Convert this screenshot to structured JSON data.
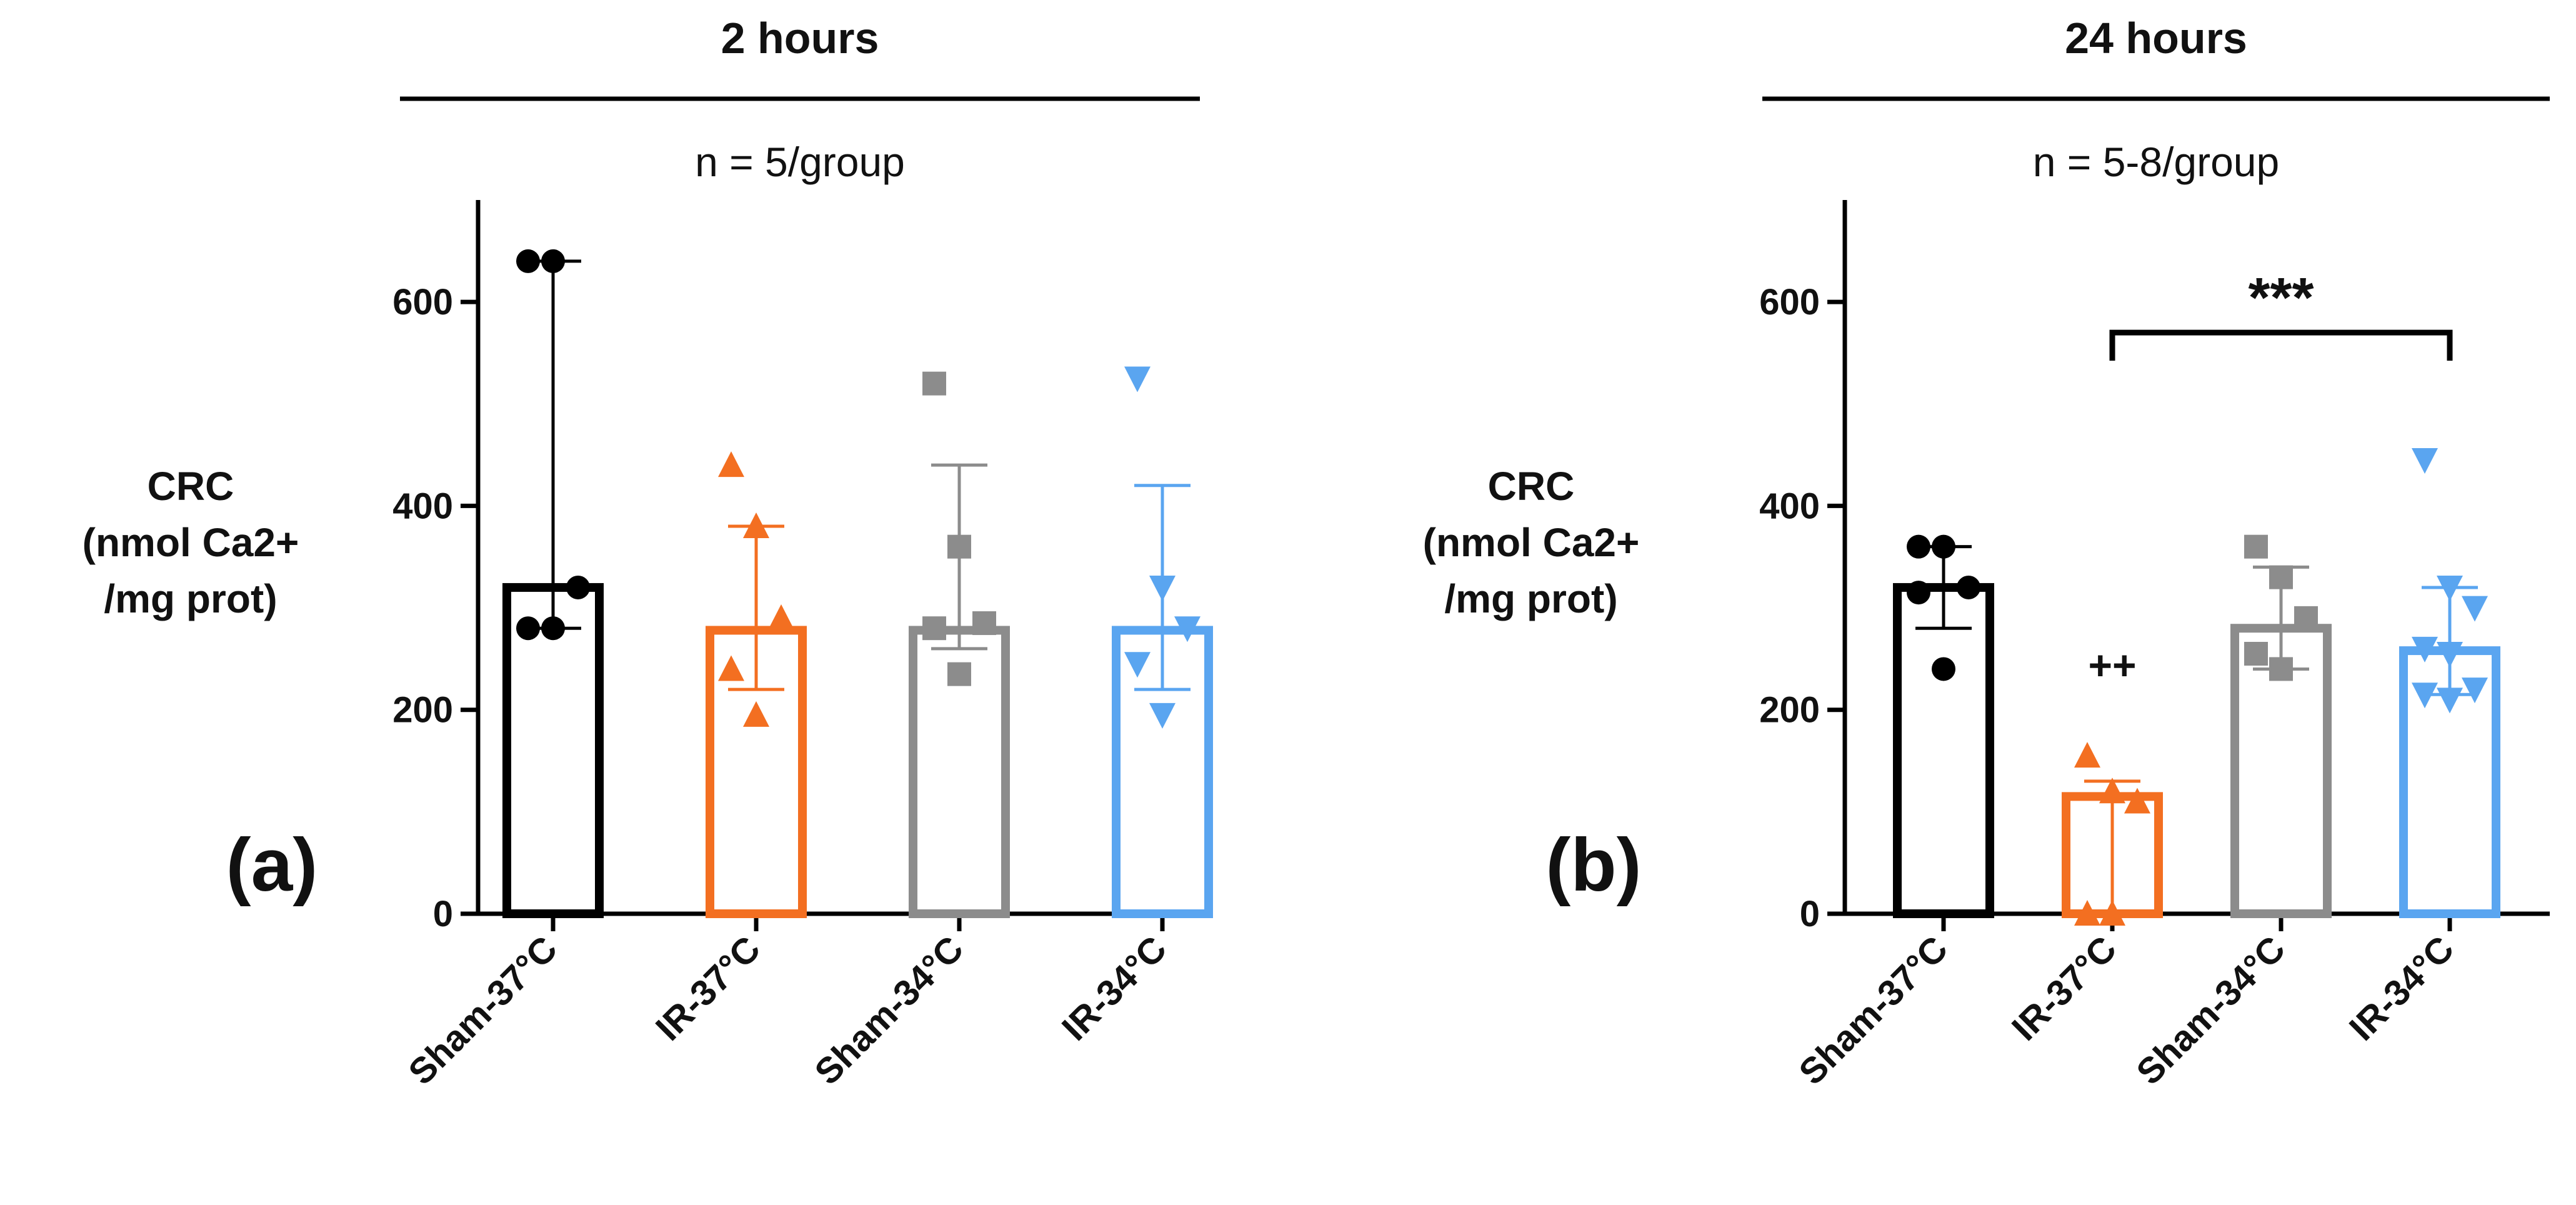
{
  "chart_data": [
    {
      "type": "bar",
      "panel_label": "(a)",
      "title": "2 hours",
      "subtitle": "n = 5/group",
      "ylabel": [
        "CRC",
        "(nmol Ca2+",
        "/mg prot)"
      ],
      "ylim": [
        0,
        700
      ],
      "yticks": [
        0,
        200,
        400,
        600
      ],
      "categories": [
        "Sham-37°C",
        "IR-37°C",
        "Sham-34°C",
        "IR-34°C"
      ],
      "means": [
        320,
        278,
        278,
        278
      ],
      "error_upper": [
        640,
        380,
        440,
        420
      ],
      "error_lower": [
        280,
        220,
        260,
        220
      ],
      "points": [
        [
          640,
          640,
          320,
          280,
          280
        ],
        [
          440,
          380,
          290,
          240,
          195
        ],
        [
          520,
          360,
          285,
          280,
          235
        ],
        [
          525,
          320,
          280,
          245,
          195
        ]
      ],
      "colors": [
        "#000000",
        "#f36f21",
        "#8c8c8c",
        "#5aa5f0"
      ],
      "markers": [
        "circle",
        "triangle-up",
        "square",
        "triangle-down"
      ],
      "annotations": []
    },
    {
      "type": "bar",
      "panel_label": "(b)",
      "title": "24 hours",
      "subtitle": "n = 5-8/group",
      "ylabel": [
        "CRC",
        "(nmol Ca2+",
        "/mg prot)"
      ],
      "ylim": [
        0,
        700
      ],
      "yticks": [
        0,
        200,
        400,
        600
      ],
      "categories": [
        "Sham-37°C",
        "IR-37°C",
        "Sham-34°C",
        "IR-34°C"
      ],
      "means": [
        320,
        115,
        280,
        258
      ],
      "error_upper": [
        360,
        130,
        340,
        320
      ],
      "error_lower": [
        280,
        0,
        240,
        215
      ],
      "points": [
        [
          360,
          360,
          320,
          315,
          240
        ],
        [
          155,
          120,
          110,
          0,
          0
        ],
        [
          360,
          330,
          290,
          255,
          240
        ],
        [
          445,
          320,
          300,
          260,
          255,
          220,
          215,
          210
        ]
      ],
      "colors": [
        "#000000",
        "#f36f21",
        "#8c8c8c",
        "#5aa5f0"
      ],
      "markers": [
        "circle",
        "triangle-up",
        "square",
        "triangle-down"
      ],
      "annotations": [
        {
          "text": "++",
          "category_index": 1,
          "y": 230
        },
        {
          "text": "***",
          "bracket_from": 1,
          "bracket_to": 3,
          "y": 570
        }
      ]
    }
  ]
}
